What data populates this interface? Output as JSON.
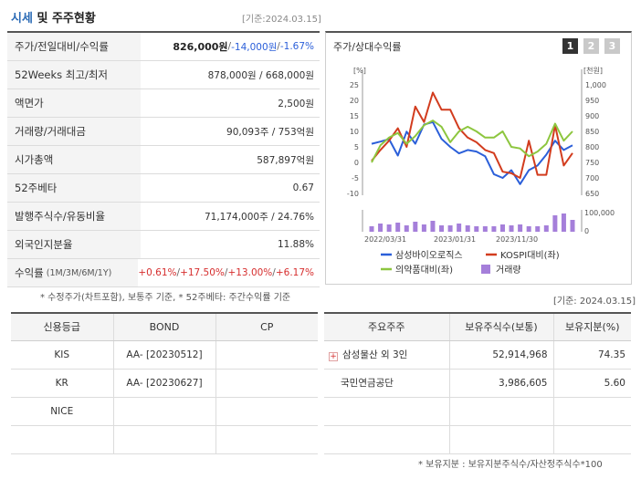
{
  "header": {
    "title_a": "시세",
    "title_b": "및 주주현황",
    "asof": "[기준:2024.03.15]"
  },
  "price_table": {
    "rows": [
      {
        "label": "주가/전일대비/수익률",
        "sub": "",
        "parts": [
          [
            "826,000원",
            "bold"
          ],
          [
            " / ",
            "sep"
          ],
          [
            "-14,000원",
            "neg"
          ],
          [
            " / ",
            "sep"
          ],
          [
            "-1.67%",
            "neg"
          ]
        ]
      },
      {
        "label": "52Weeks 최고/최저",
        "sub": "",
        "parts": [
          [
            "878,000원 / 668,000원",
            ""
          ]
        ]
      },
      {
        "label": "액면가",
        "sub": "",
        "parts": [
          [
            "2,500원",
            ""
          ]
        ]
      },
      {
        "label": "거래량/거래대금",
        "sub": "",
        "parts": [
          [
            "90,093주 / 753억원",
            ""
          ]
        ]
      },
      {
        "label": "시가총액",
        "sub": "",
        "parts": [
          [
            "587,897억원",
            ""
          ]
        ]
      },
      {
        "label": "52주베타",
        "sub": "",
        "parts": [
          [
            "0.67",
            ""
          ]
        ]
      },
      {
        "label": "발행주식수/유동비율",
        "sub": "",
        "parts": [
          [
            "71,174,000주 / 24.76%",
            ""
          ]
        ]
      },
      {
        "label": "외국인지분율",
        "sub": "",
        "parts": [
          [
            "11.88%",
            ""
          ]
        ]
      },
      {
        "label": "수익률",
        "sub": "(1M/3M/6M/1Y)",
        "parts": [
          [
            "+0.61%",
            "pos"
          ],
          [
            "/ ",
            "sep"
          ],
          [
            "+17.50%",
            "pos"
          ],
          [
            "/ ",
            "sep"
          ],
          [
            "+13.00%",
            "pos"
          ],
          [
            "/ ",
            "sep"
          ],
          [
            "+6.17%",
            "pos"
          ]
        ]
      }
    ]
  },
  "notes": {
    "left": "* 수정주가(차트포함), 보통주 기준, * 52주베타: 주간수익률 기준",
    "right_date": "[기준: 2024.03.15]",
    "bottom": "* 보유지분 : 보유지분주식수/자산정주식수*100"
  },
  "chart_panel": {
    "title": "주가/상대수익률",
    "tabs": [
      "1",
      "2",
      "3"
    ],
    "active_tab": 0
  },
  "chart_data": {
    "type": "line",
    "left_unit": "[%]",
    "right_unit": "[천원]",
    "left_ticks": [
      25,
      20,
      15,
      10,
      5,
      0,
      -5,
      -10
    ],
    "right_ticks": [
      "1,000",
      "950",
      "900",
      "850",
      "800",
      "750",
      "700",
      "650"
    ],
    "volume_ticks": [
      "100,000",
      "0"
    ],
    "x_labels": [
      "2022/03/31",
      "2023/01/31",
      "2023/11/30"
    ],
    "ylim_left": [
      -10,
      25
    ],
    "ylim_right": [
      650,
      1000
    ],
    "series": [
      {
        "name": "삼성바이오로직스",
        "color": "#2b5fd9",
        "axis": "right",
        "values": [
          810,
          817,
          825,
          772,
          849,
          810,
          872,
          880,
          826,
          800,
          779,
          790,
          785,
          770,
          712,
          700,
          725,
          680,
          725,
          740,
          775,
          820,
          790,
          805
        ]
      },
      {
        "name": "KOSPI대비(좌)",
        "color": "#d23c1e",
        "axis": "left",
        "values": [
          0.5,
          4,
          7,
          11,
          5,
          18,
          13,
          22.5,
          17,
          17,
          11,
          8,
          6.5,
          4,
          3,
          -3,
          -3.5,
          -5,
          7,
          -4,
          -4,
          12,
          -1,
          3
        ]
      },
      {
        "name": "의약품대비(좌)",
        "color": "#8dc63f",
        "axis": "left",
        "values": [
          0,
          5.5,
          8,
          9.5,
          6,
          8.5,
          12,
          13.5,
          11.5,
          6.5,
          10,
          11.5,
          10,
          8,
          8,
          10,
          5,
          4.5,
          2,
          3.5,
          6,
          12.5,
          7,
          10
        ]
      }
    ],
    "volume": {
      "name": "거래량",
      "color": "#a57fda",
      "values": [
        30,
        45,
        40,
        50,
        35,
        55,
        40,
        60,
        35,
        35,
        45,
        35,
        30,
        30,
        30,
        40,
        35,
        40,
        30,
        30,
        35,
        90,
        100,
        65
      ]
    },
    "legend": [
      "삼성바이오로직스",
      "KOSPI대비(좌)",
      "의약품대비(좌)",
      "거래량"
    ]
  },
  "credit_table": {
    "headers": [
      "신용등급",
      "BOND",
      "CP"
    ],
    "rows": [
      [
        "KIS",
        "AA- [20230512]",
        ""
      ],
      [
        "KR",
        "AA- [20230627]",
        ""
      ],
      [
        "NICE",
        "",
        ""
      ],
      [
        "",
        "",
        ""
      ]
    ]
  },
  "shareholder_table": {
    "headers": [
      "주요주주",
      "보유주식수(보통)",
      "보유지분(%)"
    ],
    "rows": [
      [
        "삼성물산 외 3인",
        "52,914,968",
        "74.35"
      ],
      [
        "국민연금공단",
        "3,986,605",
        "5.60"
      ],
      [
        "",
        "",
        ""
      ],
      [
        "",
        "",
        ""
      ]
    ]
  }
}
